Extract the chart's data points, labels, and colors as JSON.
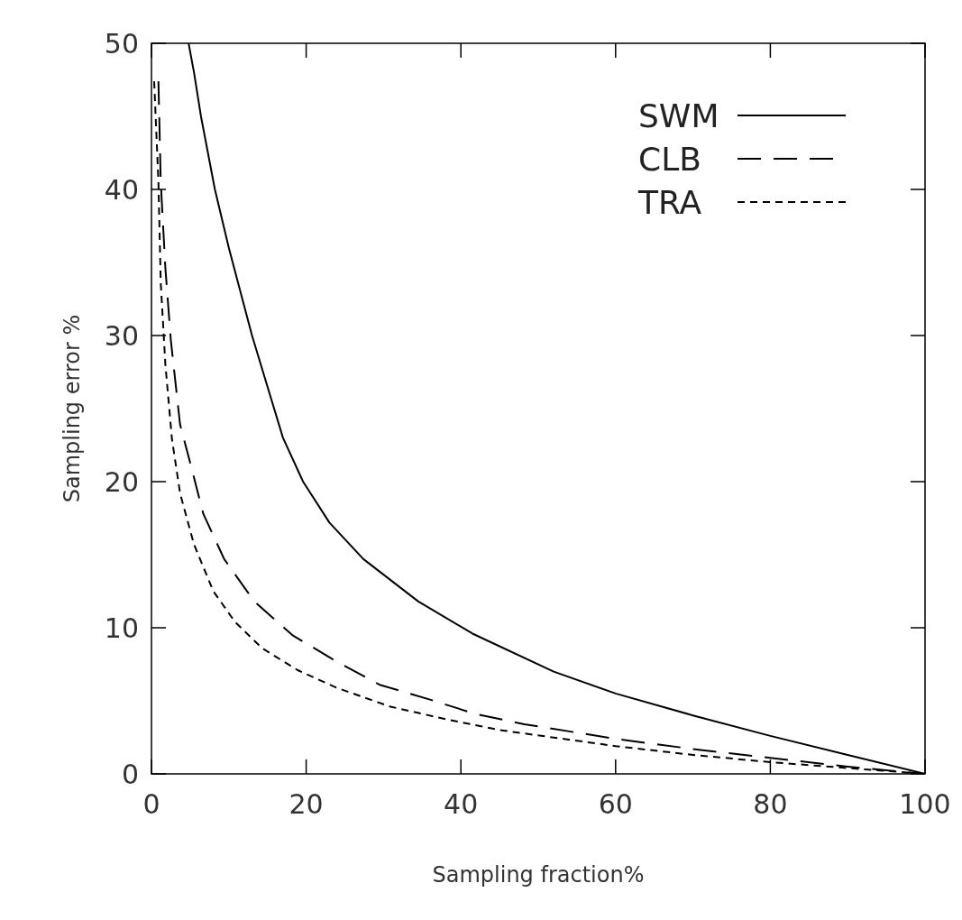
{
  "chart_data": {
    "type": "line",
    "xlabel": "Sampling fraction%",
    "ylabel": "Sampling error %",
    "xlim": [
      0,
      100
    ],
    "ylim": [
      0,
      50
    ],
    "xticks": [
      0,
      20,
      40,
      60,
      80,
      100
    ],
    "yticks": [
      0,
      10,
      20,
      30,
      40,
      50
    ],
    "grid": false,
    "legend": "top right",
    "marker": "none",
    "series": [
      {
        "name": "SWM",
        "color": "#000000",
        "line_style": "solid",
        "x": [
          4.8,
          5.5,
          6.4,
          8.2,
          10,
          11,
          13,
          15,
          17,
          19.6,
          23,
          27.4,
          34.5,
          41.5,
          52,
          60,
          70,
          80,
          90,
          100
        ],
        "values": [
          50,
          48,
          45,
          40,
          36,
          34,
          30,
          26.5,
          23,
          20,
          17.2,
          14.7,
          11.8,
          9.6,
          7,
          5.5,
          4,
          2.6,
          1.3,
          0
        ]
      },
      {
        "name": "CLB",
        "color": "#000000",
        "line_style": "dashed",
        "x": [
          0.9,
          1.2,
          1.8,
          2.5,
          3.7,
          5.1,
          6.7,
          9.4,
          13.3,
          18.2,
          23.9,
          29.5,
          35.9,
          41.9,
          48.2,
          60,
          70,
          80,
          90,
          100
        ],
        "values": [
          47.4,
          40.5,
          34.6,
          29.7,
          23.9,
          21.1,
          17.8,
          14.7,
          11.8,
          9.5,
          7.7,
          6.1,
          5.1,
          4.1,
          3.4,
          2.4,
          1.7,
          1.1,
          0.5,
          0
        ]
      },
      {
        "name": "TRA",
        "color": "#000000",
        "line_style": "dotted",
        "x": [
          0.35,
          0.9,
          1.2,
          1.8,
          2.65,
          3.7,
          5.5,
          8,
          10.8,
          14.3,
          18.9,
          23.9,
          30.9,
          38,
          45,
          60,
          70,
          80,
          90,
          100
        ],
        "values": [
          47.4,
          40.5,
          33.6,
          28,
          22.9,
          19.2,
          15.7,
          12.5,
          10.4,
          8.6,
          7.1,
          5.9,
          4.6,
          3.75,
          3,
          1.9,
          1.3,
          0.8,
          0.4,
          0
        ]
      }
    ]
  }
}
